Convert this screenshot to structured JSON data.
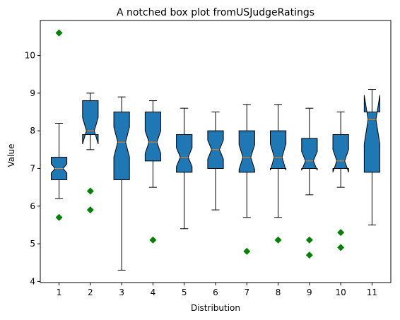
{
  "chart_data": {
    "type": "boxplot",
    "title": "A notched box plot fromUSJudgeRatings",
    "xlabel": "Distribution",
    "ylabel": "Value",
    "ylim": [
      3.97,
      10.93
    ],
    "yticks": [
      "4",
      "5",
      "6",
      "7",
      "8",
      "9",
      "10"
    ],
    "categories": [
      "1",
      "2",
      "3",
      "4",
      "5",
      "6",
      "7",
      "8",
      "9",
      "10",
      "11"
    ],
    "grid": false,
    "colors": {
      "box": "#1f77b4",
      "median": "#ff7f0e",
      "flier": "#008000",
      "edge": "#000000"
    },
    "boxes": [
      {
        "label": "1",
        "whislo": 6.2,
        "q1": 6.7,
        "med": 7.0,
        "q3": 7.3,
        "whishi": 8.2,
        "notch_lo": 6.88,
        "notch_hi": 7.12,
        "fliers": [
          5.7,
          10.6
        ]
      },
      {
        "label": "2",
        "whislo": 7.5,
        "q1": 7.9,
        "med": 8.0,
        "q3": 8.8,
        "whishi": 9.0,
        "notch_lo": 7.65,
        "notch_hi": 8.35,
        "fliers": [
          6.4,
          5.9
        ]
      },
      {
        "label": "3",
        "whislo": 4.3,
        "q1": 6.7,
        "med": 7.7,
        "q3": 8.5,
        "whishi": 8.9,
        "notch_lo": 7.3,
        "notch_hi": 8.1,
        "fliers": []
      },
      {
        "label": "4",
        "whislo": 6.5,
        "q1": 7.2,
        "med": 7.7,
        "q3": 8.5,
        "whishi": 8.8,
        "notch_lo": 7.4,
        "notch_hi": 8.0,
        "fliers": [
          5.1
        ]
      },
      {
        "label": "5",
        "whislo": 5.4,
        "q1": 6.9,
        "med": 7.3,
        "q3": 7.9,
        "whishi": 8.6,
        "notch_lo": 7.05,
        "notch_hi": 7.55,
        "fliers": []
      },
      {
        "label": "6",
        "whislo": 5.9,
        "q1": 7.0,
        "med": 7.5,
        "q3": 8.0,
        "whishi": 8.5,
        "notch_lo": 7.25,
        "notch_hi": 7.75,
        "fliers": []
      },
      {
        "label": "7",
        "whislo": 5.7,
        "q1": 6.9,
        "med": 7.3,
        "q3": 8.0,
        "whishi": 8.7,
        "notch_lo": 6.97,
        "notch_hi": 7.63,
        "fliers": [
          4.8
        ]
      },
      {
        "label": "8",
        "whislo": 5.7,
        "q1": 7.0,
        "med": 7.3,
        "q3": 8.0,
        "whishi": 8.7,
        "notch_lo": 6.95,
        "notch_hi": 7.65,
        "fliers": [
          5.1
        ]
      },
      {
        "label": "9",
        "whislo": 6.3,
        "q1": 7.0,
        "med": 7.2,
        "q3": 7.8,
        "whishi": 8.6,
        "notch_lo": 6.95,
        "notch_hi": 7.45,
        "fliers": [
          5.1,
          4.7
        ]
      },
      {
        "label": "10",
        "whislo": 6.5,
        "q1": 7.0,
        "med": 7.2,
        "q3": 7.9,
        "whishi": 8.5,
        "notch_lo": 6.9,
        "notch_hi": 7.5,
        "fliers": [
          5.3,
          4.9
        ]
      },
      {
        "label": "11",
        "whislo": 5.5,
        "q1": 6.9,
        "med": 8.3,
        "q3": 8.5,
        "whishi": 9.1,
        "notch_lo": 7.65,
        "notch_hi": 8.95,
        "fliers": []
      }
    ]
  }
}
